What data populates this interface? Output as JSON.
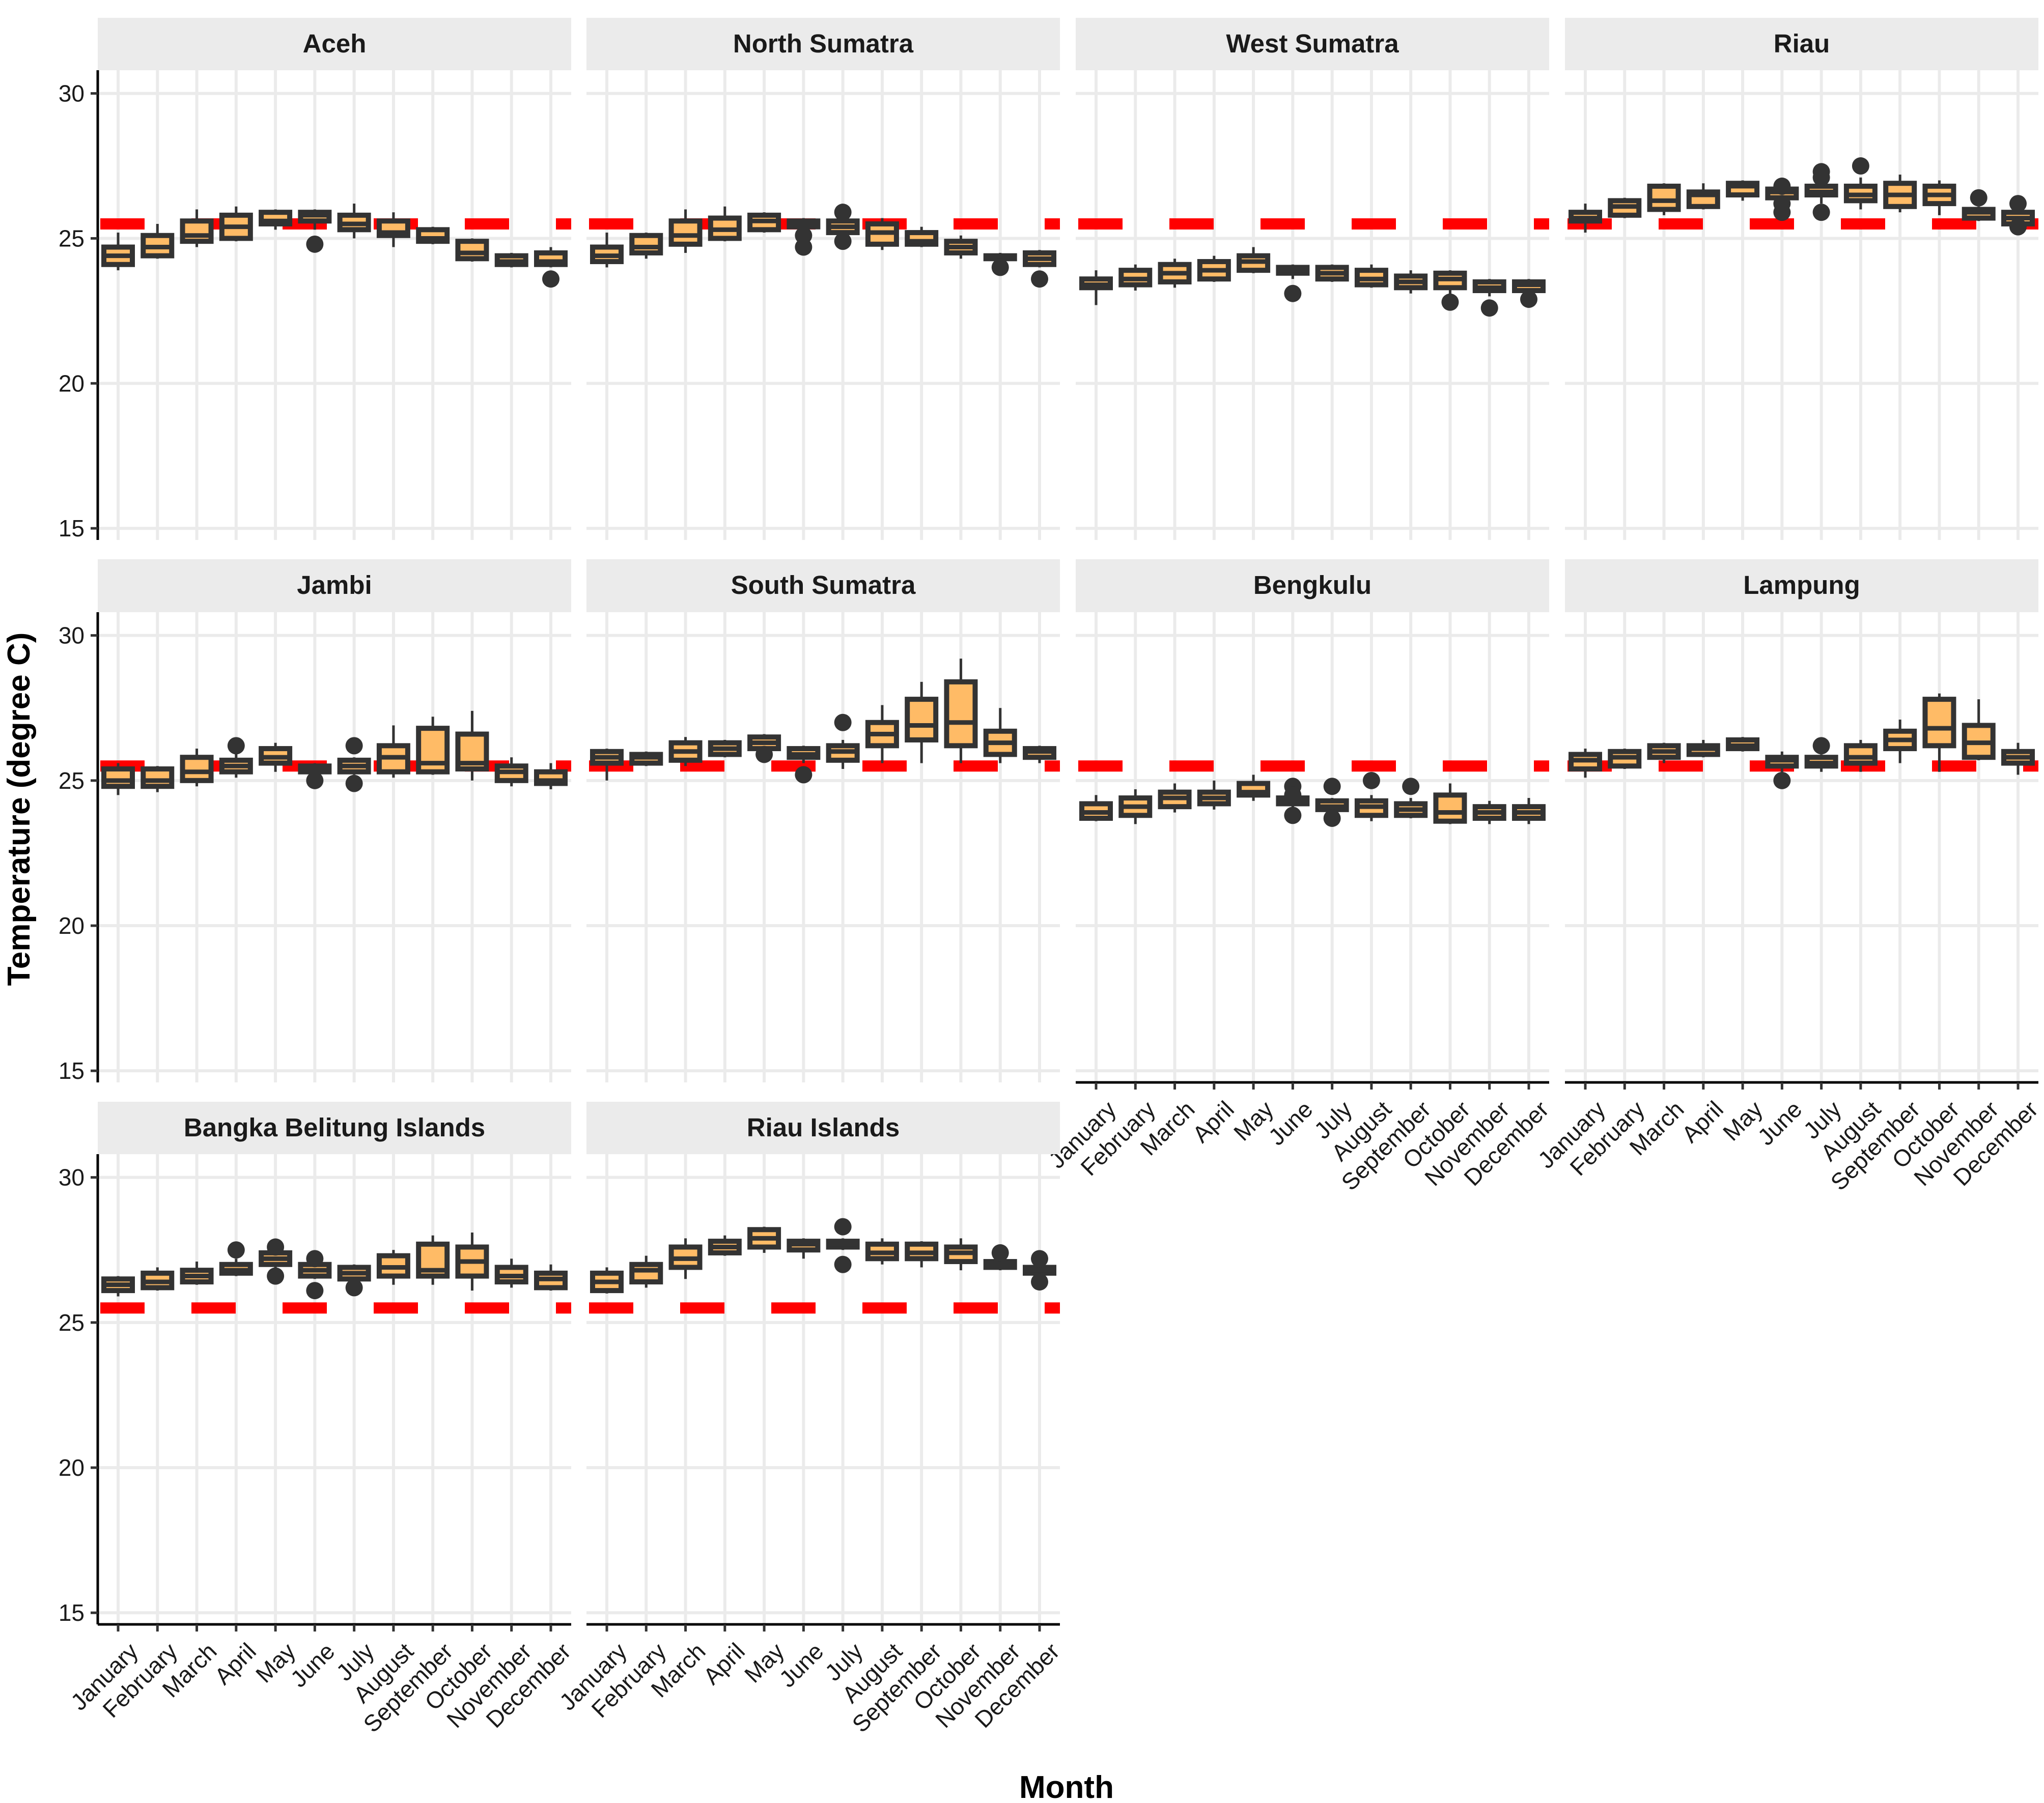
{
  "chart_data": {
    "type": "boxplot",
    "facet_layout": "4 columns, 3 rows",
    "xlabel": "Month",
    "ylabel": "Temperature (degree C)",
    "ylim": [
      14.6,
      30.8
    ],
    "yticks": [
      15,
      20,
      25,
      30
    ],
    "grid": true,
    "reference_line": {
      "y": 25.5,
      "color": "#ff0000",
      "style": "dashed"
    },
    "colors": {
      "box_fill": "#ffbb66",
      "box_line": "#333333",
      "strip_bg": "#ebebeb",
      "grid": "#ebebeb"
    },
    "categories": [
      "January",
      "February",
      "March",
      "April",
      "May",
      "June",
      "July",
      "August",
      "September",
      "October",
      "November",
      "December"
    ],
    "panels": [
      {
        "title": "Aceh",
        "boxes": [
          [
            23.9,
            24.1,
            24.4,
            24.7,
            25.2
          ],
          [
            24.3,
            24.4,
            24.7,
            25.1,
            25.5
          ],
          [
            24.7,
            24.9,
            25.1,
            25.6,
            26.0
          ],
          [
            24.9,
            25.0,
            25.4,
            25.8,
            26.1
          ],
          [
            25.3,
            25.5,
            25.6,
            25.9,
            26.0
          ],
          [
            25.3,
            25.6,
            25.8,
            25.9,
            26.0
          ],
          [
            25.0,
            25.3,
            25.5,
            25.8,
            26.2
          ],
          [
            24.7,
            25.1,
            25.2,
            25.6,
            25.9
          ],
          [
            24.8,
            24.9,
            25.0,
            25.3,
            25.4
          ],
          [
            24.2,
            24.3,
            24.5,
            24.9,
            25.0
          ],
          [
            24.0,
            24.1,
            24.2,
            24.4,
            24.5
          ],
          [
            24.0,
            24.1,
            24.2,
            24.5,
            24.7
          ]
        ],
        "outliers": [
          [],
          [],
          [],
          [],
          [],
          [
            24.8
          ],
          [],
          [],
          [],
          [],
          [],
          [
            23.6
          ]
        ]
      },
      {
        "title": "North Sumatra",
        "boxes": [
          [
            24.0,
            24.2,
            24.4,
            24.7,
            25.2
          ],
          [
            24.3,
            24.5,
            24.7,
            25.1,
            25.2
          ],
          [
            24.5,
            24.8,
            25.1,
            25.6,
            26.0
          ],
          [
            24.9,
            25.0,
            25.3,
            25.7,
            26.1
          ],
          [
            25.2,
            25.3,
            25.6,
            25.8,
            25.9
          ],
          [
            25.2,
            25.4,
            25.5,
            25.6,
            25.7
          ],
          [
            25.0,
            25.2,
            25.4,
            25.6,
            25.7
          ],
          [
            24.6,
            24.8,
            25.2,
            25.5,
            25.7
          ],
          [
            24.7,
            24.8,
            24.9,
            25.2,
            25.4
          ],
          [
            24.3,
            24.5,
            24.7,
            24.9,
            25.1
          ],
          [
            24.1,
            24.3,
            24.4,
            24.4,
            24.5
          ],
          [
            24.0,
            24.1,
            24.3,
            24.5,
            24.6
          ]
        ],
        "outliers": [
          [],
          [],
          [],
          [],
          [],
          [
            25.1,
            24.7
          ],
          [
            25.9,
            24.9
          ],
          [],
          [],
          [],
          [
            24.0
          ],
          [
            23.6
          ]
        ]
      },
      {
        "title": "West Sumatra",
        "boxes": [
          [
            22.7,
            23.3,
            23.4,
            23.6,
            23.9
          ],
          [
            23.2,
            23.4,
            23.6,
            23.9,
            24.1
          ],
          [
            23.3,
            23.5,
            23.8,
            24.1,
            24.3
          ],
          [
            23.5,
            23.6,
            23.9,
            24.2,
            24.4
          ],
          [
            23.8,
            23.9,
            24.2,
            24.4,
            24.7
          ],
          [
            23.6,
            23.8,
            23.9,
            24.0,
            24.1
          ],
          [
            23.5,
            23.6,
            23.8,
            24.0,
            24.1
          ],
          [
            23.3,
            23.4,
            23.6,
            23.9,
            24.1
          ],
          [
            23.1,
            23.3,
            23.5,
            23.7,
            23.9
          ],
          [
            23.0,
            23.3,
            23.6,
            23.8,
            23.9
          ],
          [
            23.0,
            23.2,
            23.3,
            23.5,
            23.6
          ],
          [
            22.9,
            23.2,
            23.4,
            23.5,
            23.6
          ]
        ],
        "outliers": [
          [],
          [],
          [],
          [],
          [],
          [
            23.1
          ],
          [],
          [],
          [],
          [
            22.8
          ],
          [
            22.6
          ],
          [
            22.9
          ]
        ]
      },
      {
        "title": "Riau",
        "boxes": [
          [
            25.2,
            25.6,
            25.7,
            25.9,
            26.2
          ],
          [
            25.7,
            25.8,
            26.1,
            26.3,
            26.4
          ],
          [
            25.8,
            26.0,
            26.3,
            26.8,
            26.9
          ],
          [
            26.0,
            26.1,
            26.5,
            26.6,
            26.9
          ],
          [
            26.3,
            26.5,
            26.8,
            26.9,
            27.0
          ],
          [
            26.2,
            26.4,
            26.6,
            26.7,
            26.8
          ],
          [
            26.2,
            26.5,
            26.6,
            26.8,
            26.9
          ],
          [
            26.0,
            26.3,
            26.5,
            26.8,
            27.1
          ],
          [
            25.9,
            26.1,
            26.5,
            26.9,
            27.2
          ],
          [
            25.8,
            26.2,
            26.5,
            26.8,
            27.0
          ],
          [
            25.6,
            25.7,
            25.9,
            26.0,
            26.1
          ],
          [
            25.3,
            25.5,
            25.7,
            25.9,
            26.0
          ]
        ],
        "outliers": [
          [],
          [],
          [],
          [],
          [],
          [
            26.8,
            26.2,
            25.9
          ],
          [
            27.3,
            27.1,
            25.9
          ],
          [
            27.5
          ],
          [],
          [],
          [
            26.4
          ],
          [
            26.2,
            25.4
          ]
        ]
      },
      {
        "title": "Jambi",
        "boxes": [
          [
            24.5,
            24.8,
            25.0,
            25.4,
            25.6
          ],
          [
            24.6,
            24.8,
            25.0,
            25.4,
            25.5
          ],
          [
            24.8,
            25.0,
            25.3,
            25.8,
            26.1
          ],
          [
            25.1,
            25.3,
            25.5,
            25.7,
            26.0
          ],
          [
            25.3,
            25.6,
            25.8,
            26.1,
            26.3
          ],
          [
            25.2,
            25.3,
            25.4,
            25.5,
            25.6
          ],
          [
            25.2,
            25.3,
            25.5,
            25.7,
            25.8
          ],
          [
            25.1,
            25.3,
            25.8,
            26.2,
            26.9
          ],
          [
            25.2,
            25.3,
            25.6,
            26.8,
            27.2
          ],
          [
            25.0,
            25.4,
            25.6,
            26.6,
            27.4
          ],
          [
            24.8,
            25.0,
            25.3,
            25.5,
            25.8
          ],
          [
            24.7,
            24.9,
            25.0,
            25.3,
            25.6
          ]
        ],
        "outliers": [
          [],
          [],
          [],
          [
            26.2
          ],
          [],
          [
            25.0
          ],
          [
            26.2,
            24.9
          ],
          [],
          [],
          [],
          [],
          []
        ]
      },
      {
        "title": "South Sumatra",
        "boxes": [
          [
            25.0,
            25.6,
            25.8,
            26.0,
            26.1
          ],
          [
            25.5,
            25.6,
            25.8,
            25.9,
            26.0
          ],
          [
            25.5,
            25.7,
            26.0,
            26.3,
            26.5
          ],
          [
            25.8,
            25.9,
            26.1,
            26.3,
            26.4
          ],
          [
            25.9,
            26.1,
            26.3,
            26.5,
            26.6
          ],
          [
            25.6,
            25.8,
            25.9,
            26.1,
            26.2
          ],
          [
            25.4,
            25.7,
            26.0,
            26.2,
            26.4
          ],
          [
            25.6,
            26.2,
            26.6,
            27.0,
            27.6
          ],
          [
            25.6,
            26.4,
            26.9,
            27.8,
            28.4
          ],
          [
            25.6,
            26.2,
            27.0,
            28.4,
            29.2
          ],
          [
            25.6,
            25.9,
            26.3,
            26.7,
            27.5
          ],
          [
            25.6,
            25.8,
            26.0,
            26.1,
            26.2
          ]
        ],
        "outliers": [
          [],
          [],
          [],
          [],
          [
            25.9
          ],
          [
            25.2
          ],
          [
            27.0
          ],
          [],
          [],
          [],
          [],
          []
        ]
      },
      {
        "title": "Bengkulu",
        "boxes": [
          [
            23.6,
            23.7,
            23.9,
            24.2,
            24.5
          ],
          [
            23.5,
            23.8,
            24.1,
            24.4,
            24.7
          ],
          [
            23.9,
            24.1,
            24.4,
            24.6,
            24.9
          ],
          [
            24.0,
            24.2,
            24.4,
            24.6,
            25.0
          ],
          [
            24.3,
            24.5,
            24.6,
            24.9,
            25.2
          ],
          [
            24.0,
            24.2,
            24.3,
            24.4,
            24.5
          ],
          [
            23.9,
            24.0,
            24.1,
            24.3,
            24.4
          ],
          [
            23.6,
            23.8,
            24.1,
            24.3,
            24.5
          ],
          [
            23.7,
            23.8,
            24.0,
            24.2,
            24.4
          ],
          [
            23.5,
            23.6,
            23.9,
            24.5,
            24.9
          ],
          [
            23.5,
            23.7,
            23.9,
            24.1,
            24.3
          ],
          [
            23.5,
            23.7,
            23.9,
            24.1,
            24.4
          ]
        ],
        "outliers": [
          [],
          [],
          [],
          [],
          [],
          [
            24.8,
            24.5,
            23.8
          ],
          [
            24.8,
            23.7
          ],
          [
            25.0
          ],
          [
            24.8
          ],
          [],
          [],
          []
        ]
      },
      {
        "title": "Lampung",
        "boxes": [
          [
            25.1,
            25.4,
            25.7,
            25.9,
            26.1
          ],
          [
            25.4,
            25.5,
            25.8,
            26.0,
            26.1
          ],
          [
            25.6,
            25.8,
            26.0,
            26.2,
            26.3
          ],
          [
            25.8,
            25.9,
            26.1,
            26.2,
            26.4
          ],
          [
            26.0,
            26.1,
            26.2,
            26.4,
            26.5
          ],
          [
            25.2,
            25.5,
            25.7,
            25.8,
            26.0
          ],
          [
            25.3,
            25.5,
            25.6,
            25.8,
            25.9
          ],
          [
            25.3,
            25.6,
            25.8,
            26.2,
            26.4
          ],
          [
            25.6,
            26.1,
            26.4,
            26.7,
            27.1
          ],
          [
            25.3,
            26.2,
            26.8,
            27.8,
            28.0
          ],
          [
            25.7,
            25.8,
            26.3,
            26.9,
            27.8
          ],
          [
            25.2,
            25.6,
            25.8,
            26.0,
            26.3
          ]
        ],
        "outliers": [
          [],
          [],
          [],
          [],
          [],
          [
            25.0
          ],
          [
            26.2
          ],
          [],
          [],
          [],
          [],
          []
        ]
      },
      {
        "title": "Bangka Belitung Islands",
        "boxes": [
          [
            25.9,
            26.1,
            26.3,
            26.5,
            26.6
          ],
          [
            26.1,
            26.2,
            26.4,
            26.7,
            26.9
          ],
          [
            26.3,
            26.4,
            26.6,
            26.8,
            27.1
          ],
          [
            26.6,
            26.7,
            26.8,
            27.0,
            27.2
          ],
          [
            26.8,
            27.0,
            27.2,
            27.4,
            27.6
          ],
          [
            26.5,
            26.6,
            26.8,
            27.0,
            27.1
          ],
          [
            26.4,
            26.5,
            26.7,
            26.9,
            27.0
          ],
          [
            26.3,
            26.6,
            26.9,
            27.3,
            27.5
          ],
          [
            26.3,
            26.6,
            26.8,
            27.7,
            28.0
          ],
          [
            26.1,
            26.6,
            27.1,
            27.6,
            28.1
          ],
          [
            26.2,
            26.4,
            26.6,
            26.9,
            27.2
          ],
          [
            26.1,
            26.2,
            26.5,
            26.7,
            27.0
          ]
        ],
        "outliers": [
          [],
          [],
          [],
          [
            27.5
          ],
          [
            27.6,
            26.6
          ],
          [
            27.2,
            26.1
          ],
          [
            26.2
          ],
          [],
          [],
          [],
          [],
          []
        ]
      },
      {
        "title": "Riau Islands",
        "boxes": [
          [
            26.0,
            26.1,
            26.4,
            26.7,
            26.9
          ],
          [
            26.2,
            26.4,
            26.8,
            27.0,
            27.3
          ],
          [
            26.5,
            26.9,
            27.2,
            27.6,
            27.9
          ],
          [
            27.3,
            27.4,
            27.6,
            27.8,
            28.0
          ],
          [
            27.4,
            27.6,
            27.9,
            28.2,
            28.3
          ],
          [
            27.2,
            27.5,
            27.7,
            27.8,
            27.9
          ],
          [
            27.5,
            27.6,
            27.7,
            27.8,
            27.9
          ],
          [
            27.0,
            27.2,
            27.4,
            27.7,
            27.9
          ],
          [
            26.9,
            27.2,
            27.4,
            27.7,
            27.8
          ],
          [
            26.8,
            27.1,
            27.4,
            27.6,
            27.9
          ],
          [
            26.8,
            26.9,
            27.0,
            27.1,
            27.2
          ],
          [
            26.6,
            26.7,
            26.8,
            26.9,
            27.0
          ]
        ],
        "outliers": [
          [],
          [],
          [],
          [],
          [],
          [],
          [
            28.3,
            27.0
          ],
          [],
          [],
          [],
          [
            27.4
          ],
          [
            27.2,
            26.4
          ]
        ]
      }
    ]
  }
}
